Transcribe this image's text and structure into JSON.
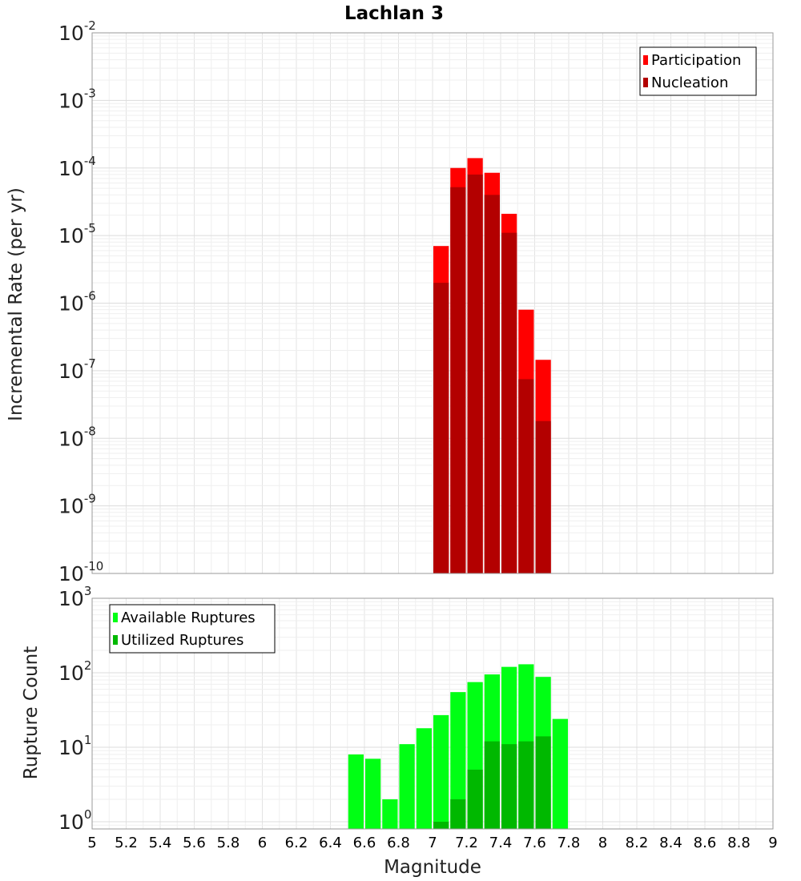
{
  "chart_data": [
    {
      "type": "bar",
      "title": "Lachlan 3",
      "xlabel": "Magnitude",
      "ylabel": "Incremental Rate (per yr)",
      "yscale": "log",
      "ylim": [
        1e-10,
        0.01
      ],
      "xlim": [
        5,
        9
      ],
      "bin_width": 0.1,
      "x": [
        7.05,
        7.15,
        7.25,
        7.35,
        7.45,
        7.55,
        7.65
      ],
      "series": [
        {
          "name": "Participation",
          "color": "#ff0000",
          "values": [
            7e-06,
            0.0001,
            0.00014,
            8.5e-05,
            2.1e-05,
            8e-07,
            1.45e-07
          ]
        },
        {
          "name": "Nucleation",
          "color": "#b30000",
          "values": [
            2e-06,
            5.2e-05,
            8e-05,
            4e-05,
            1.1e-05,
            7.5e-08,
            1.8e-08
          ]
        }
      ],
      "legend_position": "top-right",
      "yticks": [
        {
          "value": 0.01,
          "base": "10",
          "exp": "-2"
        },
        {
          "value": 0.001,
          "base": "10",
          "exp": "-3"
        },
        {
          "value": 0.0001,
          "base": "10",
          "exp": "-4"
        },
        {
          "value": 1e-05,
          "base": "10",
          "exp": "-5"
        },
        {
          "value": 1e-06,
          "base": "10",
          "exp": "-6"
        },
        {
          "value": 1e-07,
          "base": "10",
          "exp": "-7"
        },
        {
          "value": 1e-08,
          "base": "10",
          "exp": "-8"
        },
        {
          "value": 1e-09,
          "base": "10",
          "exp": "-9"
        },
        {
          "value": 1e-10,
          "base": "10",
          "exp": "-10"
        }
      ]
    },
    {
      "type": "bar",
      "title": "",
      "xlabel": "Magnitude",
      "ylabel": "Rupture Count",
      "yscale": "log",
      "ylim": [
        0.8,
        1000
      ],
      "xlim": [
        5,
        9
      ],
      "bin_width": 0.1,
      "x": [
        6.55,
        6.65,
        6.75,
        6.85,
        6.95,
        7.05,
        7.15,
        7.25,
        7.35,
        7.45,
        7.55,
        7.65,
        7.75
      ],
      "series": [
        {
          "name": "Available Ruptures",
          "color": "#00ff14",
          "values": [
            8,
            7,
            2,
            11,
            18,
            27,
            55,
            75,
            95,
            120,
            130,
            88,
            24
          ]
        },
        {
          "name": "Utilized Ruptures",
          "color": "#00b800",
          "values": [
            null,
            null,
            null,
            null,
            null,
            1,
            2,
            5,
            12,
            11,
            12,
            14,
            null
          ]
        }
      ],
      "legend_position": "top-left",
      "yticks": [
        {
          "value": 1000,
          "base": "10",
          "exp": "3"
        },
        {
          "value": 100,
          "base": "10",
          "exp": "2"
        },
        {
          "value": 10,
          "base": "10",
          "exp": "1"
        },
        {
          "value": 1,
          "base": "10",
          "exp": "0"
        }
      ],
      "xticks": [
        "5",
        "5.2",
        "5.4",
        "5.6",
        "5.8",
        "6",
        "6.2",
        "6.4",
        "6.6",
        "6.8",
        "7",
        "7.2",
        "7.4",
        "7.6",
        "7.8",
        "8",
        "8.2",
        "8.4",
        "8.6",
        "8.8",
        "9"
      ]
    }
  ]
}
